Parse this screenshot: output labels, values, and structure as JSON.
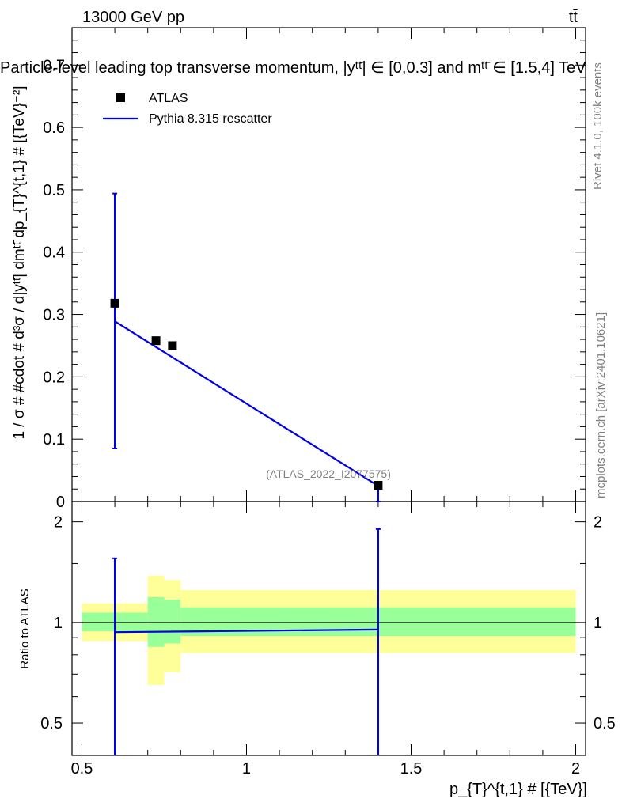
{
  "header": {
    "left": "13000 GeV pp",
    "right": "tt̄"
  },
  "main_title": "Particle-level leading top transverse momentum, |yᵗᵗ̄| ∈ [0,0.3] and mᵗᵗ̄ ∈ [1.5,4] TeV",
  "side_labels": {
    "rivet": "Rivet 4.1.0,  100k events",
    "mcplots": "mcplots.cern.ch [arXiv:2401.10621]"
  },
  "watermark": "(ATLAS_2022_I2077575)",
  "legend": {
    "data_label": "ATLAS",
    "mc_label": "Pythia 8.315 rescatter"
  },
  "colors": {
    "mc_line": "#0000e6",
    "band_inner": "#99ff99",
    "band_outer": "#ffff99",
    "data_marker": "#000000"
  },
  "chart_data": [
    {
      "type": "scatter",
      "panel": "main",
      "ylabel": "1 / σ # #cdot # d³σ / d|yᵗᵗ̄| dmᵗᵗ̄ dp_{T}^{t,1} # [{TeV}⁻²]",
      "xlim": [
        0.47,
        2.03
      ],
      "ylim": [
        0,
        0.76
      ],
      "y_ticks": [
        0,
        0.1,
        0.2,
        0.3,
        0.4,
        0.5,
        0.6,
        0.7
      ],
      "y_tick_labels": [
        "0",
        "0.1",
        "0.2",
        "0.3",
        "0.4",
        "0.5",
        "0.6",
        "0.7"
      ],
      "series": [
        {
          "name": "ATLAS",
          "x": [
            0.6,
            0.725,
            0.775,
            1.4
          ],
          "y": [
            0.318,
            0.258,
            0.25,
            0.026
          ]
        },
        {
          "name": "Pythia 8.315 rescatter",
          "x": [
            0.6,
            1.4
          ],
          "y": [
            0.289,
            0.025
          ],
          "yerr_low": [
            0.204,
            0.025
          ],
          "yerr_high": [
            0.205,
            0.003
          ]
        }
      ]
    },
    {
      "type": "line",
      "panel": "ratio",
      "ylabel": "Ratio to ATLAS",
      "xlabel": "p_{T}^{t,1} # [{TeV}]",
      "xlim": [
        0.47,
        2.03
      ],
      "ylim": [
        0.4,
        2.3
      ],
      "log_y": true,
      "x_ticks": [
        0.5,
        1,
        1.5,
        2
      ],
      "x_tick_labels": [
        "0.5",
        "1",
        "1.5",
        "2"
      ],
      "y_ticks": [
        0.5,
        1,
        2
      ],
      "y_tick_labels": [
        "0.5",
        "1",
        "2"
      ],
      "bands": [
        {
          "x_low": 0.5,
          "x_high": 0.7,
          "inner": [
            0.94,
            1.07
          ],
          "outer": [
            0.88,
            1.14
          ]
        },
        {
          "x_low": 0.7,
          "x_high": 0.75,
          "inner": [
            0.845,
            1.19
          ],
          "outer": [
            0.65,
            1.38
          ]
        },
        {
          "x_low": 0.75,
          "x_high": 0.8,
          "inner": [
            0.865,
            1.17
          ],
          "outer": [
            0.71,
            1.34
          ]
        },
        {
          "x_low": 0.8,
          "x_high": 2.0,
          "inner": [
            0.91,
            1.11
          ],
          "outer": [
            0.81,
            1.25
          ]
        }
      ],
      "series": [
        {
          "name": "Pythia 8.315 rescatter",
          "x": [
            0.6,
            1.4
          ],
          "y": [
            0.935,
            0.952
          ],
          "yerr_low": [
            0.55,
            0.6
          ],
          "yerr_high": [
            0.62,
            0.95
          ]
        }
      ]
    }
  ]
}
